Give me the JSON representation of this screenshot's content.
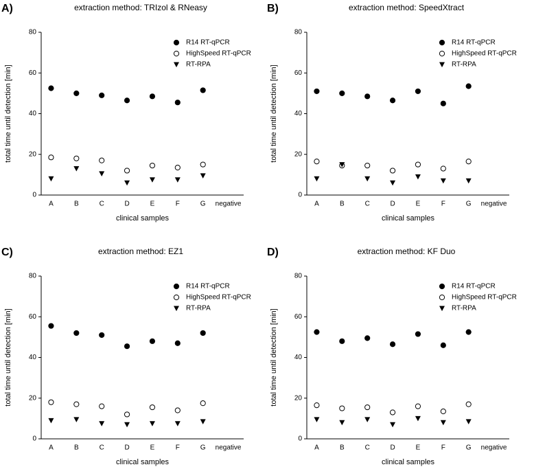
{
  "chart_data": [
    {
      "type": "scatter",
      "panel_label": "A)",
      "title": "extraction method: TRIzol & RNeasy",
      "x_label": "clinical samples",
      "y_label": "total time until detection [min]",
      "categories": [
        "A",
        "B",
        "C",
        "D",
        "E",
        "F",
        "G",
        "negative"
      ],
      "ylim": [
        0,
        80
      ],
      "yticks": [
        0,
        20,
        40,
        60,
        80
      ],
      "legend": "upper right",
      "series": [
        {
          "name": "R14 RT-qPCR",
          "color": "#000000",
          "marker": "filled-circle",
          "values": [
            52.5,
            50,
            49,
            46.5,
            48.5,
            45.5,
            51.5,
            null
          ]
        },
        {
          "name": "HighSpeed RT-qPCR",
          "color": "#000000",
          "marker": "open-circle",
          "values": [
            18.5,
            18,
            17,
            12,
            14.5,
            13.5,
            15,
            null
          ]
        },
        {
          "name": "RT-RPA",
          "color": "#000000",
          "marker": "triangle-down",
          "values": [
            8,
            13,
            10.5,
            6,
            7.5,
            7.5,
            9.5,
            null
          ]
        }
      ]
    },
    {
      "type": "scatter",
      "panel_label": "B)",
      "title": "extraction method: SpeedXtract",
      "x_label": "clinical samples",
      "y_label": "total time until detection [min]",
      "categories": [
        "A",
        "B",
        "C",
        "D",
        "E",
        "F",
        "G",
        "negative"
      ],
      "ylim": [
        0,
        80
      ],
      "yticks": [
        0,
        20,
        40,
        60,
        80
      ],
      "legend": "upper right",
      "series": [
        {
          "name": "R14 RT-qPCR",
          "color": "#000000",
          "marker": "filled-circle",
          "values": [
            51,
            50,
            48.5,
            46.5,
            51,
            45,
            53.5,
            null
          ]
        },
        {
          "name": "HighSpeed RT-qPCR",
          "color": "#000000",
          "marker": "open-circle",
          "values": [
            16.5,
            14.5,
            14.5,
            12,
            15,
            13,
            16.5,
            null
          ]
        },
        {
          "name": "RT-RPA",
          "color": "#000000",
          "marker": "triangle-down",
          "values": [
            8,
            15,
            8,
            6,
            9,
            7,
            7,
            null
          ]
        }
      ]
    },
    {
      "type": "scatter",
      "panel_label": "C)",
      "title": "extraction method: EZ1",
      "x_label": "clinical samples",
      "y_label": "total time until detection [min]",
      "categories": [
        "A",
        "B",
        "C",
        "D",
        "E",
        "F",
        "G",
        "negative"
      ],
      "ylim": [
        0,
        80
      ],
      "yticks": [
        0,
        20,
        40,
        60,
        80
      ],
      "legend": "upper right",
      "series": [
        {
          "name": "R14 RT-qPCR",
          "color": "#000000",
          "marker": "filled-circle",
          "values": [
            55.5,
            52,
            51,
            45.5,
            48,
            47,
            52,
            null
          ]
        },
        {
          "name": "HighSpeed RT-qPCR",
          "color": "#000000",
          "marker": "open-circle",
          "values": [
            18,
            17,
            16,
            12,
            15.5,
            14,
            17.5,
            null
          ]
        },
        {
          "name": "RT-RPA",
          "color": "#000000",
          "marker": "triangle-down",
          "values": [
            9,
            9.5,
            7.5,
            7,
            7.5,
            7.5,
            8.5,
            null
          ]
        }
      ]
    },
    {
      "type": "scatter",
      "panel_label": "D)",
      "title": "extraction method: KF Duo",
      "x_label": "clinical samples",
      "y_label": "total time until detection [min]",
      "categories": [
        "A",
        "B",
        "C",
        "D",
        "E",
        "F",
        "G",
        "negative"
      ],
      "ylim": [
        0,
        80
      ],
      "yticks": [
        0,
        20,
        40,
        60,
        80
      ],
      "legend": "upper right",
      "series": [
        {
          "name": "R14 RT-qPCR",
          "color": "#000000",
          "marker": "filled-circle",
          "values": [
            52.5,
            48,
            49.5,
            46.5,
            51.5,
            46,
            52.5,
            null
          ]
        },
        {
          "name": "HighSpeed RT-qPCR",
          "color": "#000000",
          "marker": "open-circle",
          "values": [
            16.5,
            15,
            15.5,
            13,
            16,
            13.5,
            17,
            null
          ]
        },
        {
          "name": "RT-RPA",
          "color": "#000000",
          "marker": "triangle-down",
          "values": [
            9.5,
            8,
            9.5,
            7,
            10,
            8,
            8.5,
            null
          ]
        }
      ]
    }
  ]
}
